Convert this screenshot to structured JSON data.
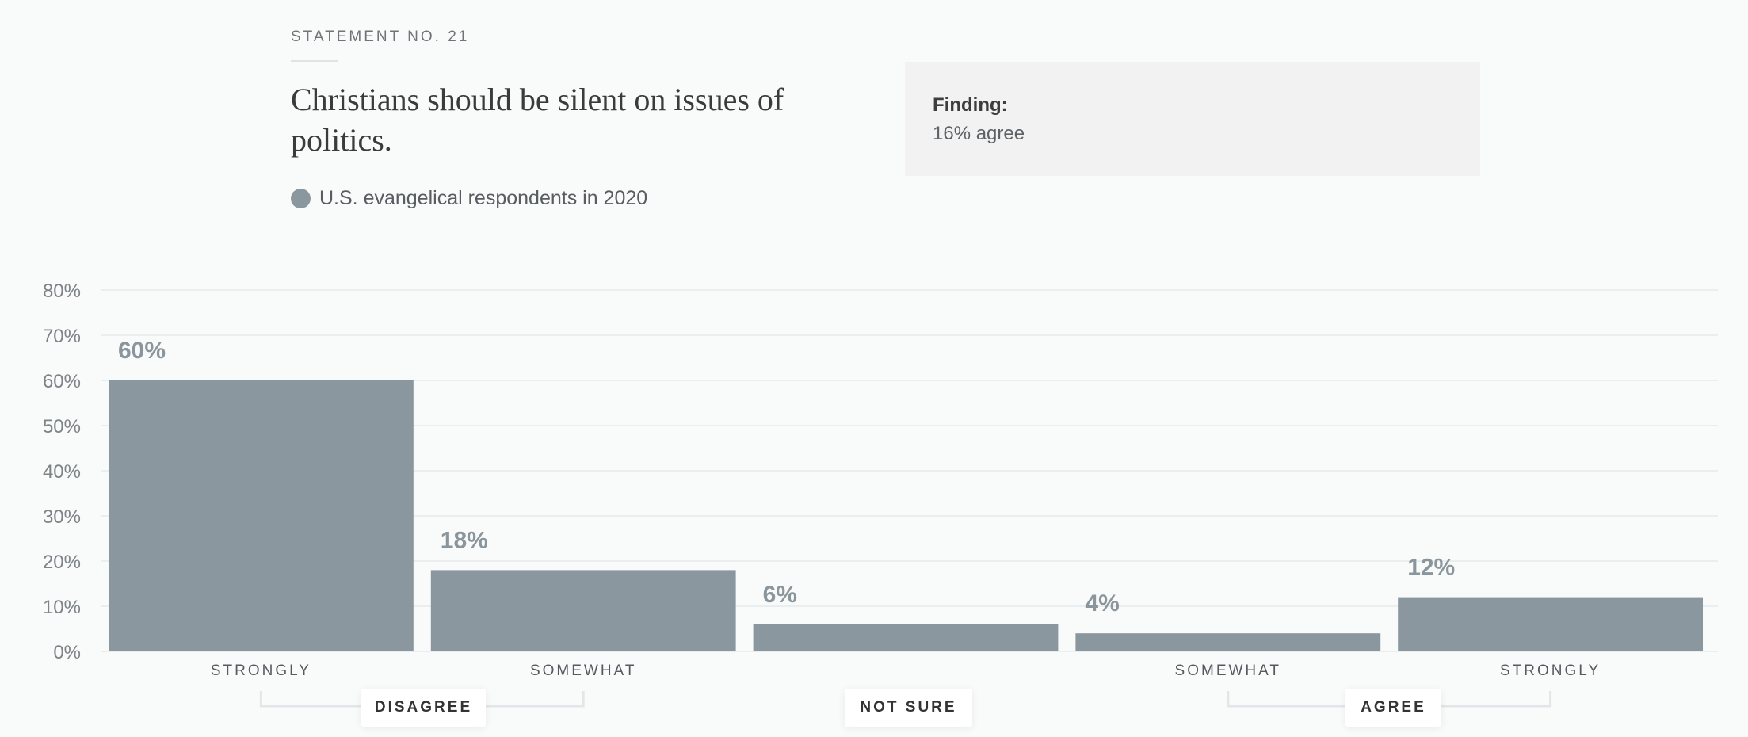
{
  "header": {
    "statement_no": "STATEMENT NO. 21",
    "title": "Christians should be silent on issues of politics.",
    "legend": "U.S. evangelical respondents in 2020"
  },
  "finding": {
    "label": "Finding:",
    "value": "16% agree"
  },
  "groups": {
    "disagree": "DISAGREE",
    "not_sure": "NOT SURE",
    "agree": "AGREE"
  },
  "colors": {
    "bar": "#8a979e",
    "grid": "#e6e9ea",
    "background": "#f9fafa"
  },
  "chart_data": {
    "type": "bar",
    "categories": [
      "STRONGLY",
      "SOMEWHAT",
      "",
      "SOMEWHAT",
      "STRONGLY"
    ],
    "values": [
      60,
      18,
      6,
      4,
      12
    ],
    "data_labels": [
      "60%",
      "18%",
      "6%",
      "4%",
      "12%"
    ],
    "series": [
      {
        "name": "U.S. evangelical respondents in 2020",
        "values": [
          60,
          18,
          6,
          4,
          12
        ]
      }
    ],
    "yticks": [
      "0%",
      "10%",
      "20%",
      "30%",
      "40%",
      "50%",
      "60%",
      "70%",
      "80%"
    ],
    "ylim": [
      0,
      80
    ],
    "grid": true,
    "title": "Christians should be silent on issues of politics.",
    "xlabel": "",
    "ylabel": ""
  }
}
